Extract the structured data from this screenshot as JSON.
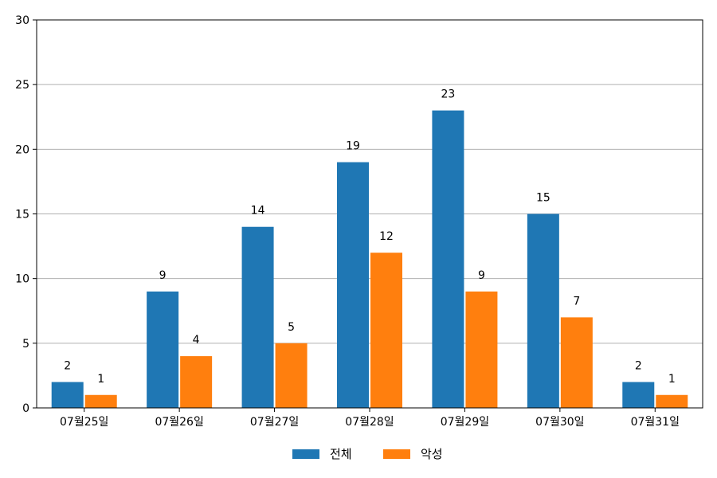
{
  "chart_data": {
    "type": "bar",
    "categories": [
      "07월25일",
      "07월26일",
      "07월27일",
      "07월28일",
      "07월29일",
      "07월30일",
      "07월31일"
    ],
    "series": [
      {
        "name": "전체",
        "values": [
          2,
          9,
          14,
          19,
          23,
          15,
          2
        ],
        "color": "#1f77b4"
      },
      {
        "name": "악성",
        "values": [
          1,
          4,
          5,
          12,
          9,
          7,
          1
        ],
        "color": "#ff7f0e"
      }
    ],
    "ylim": [
      0,
      30
    ],
    "yticks": [
      0,
      5,
      10,
      15,
      20,
      25,
      30
    ],
    "grid": "y",
    "legend_position": "bottom-center"
  }
}
